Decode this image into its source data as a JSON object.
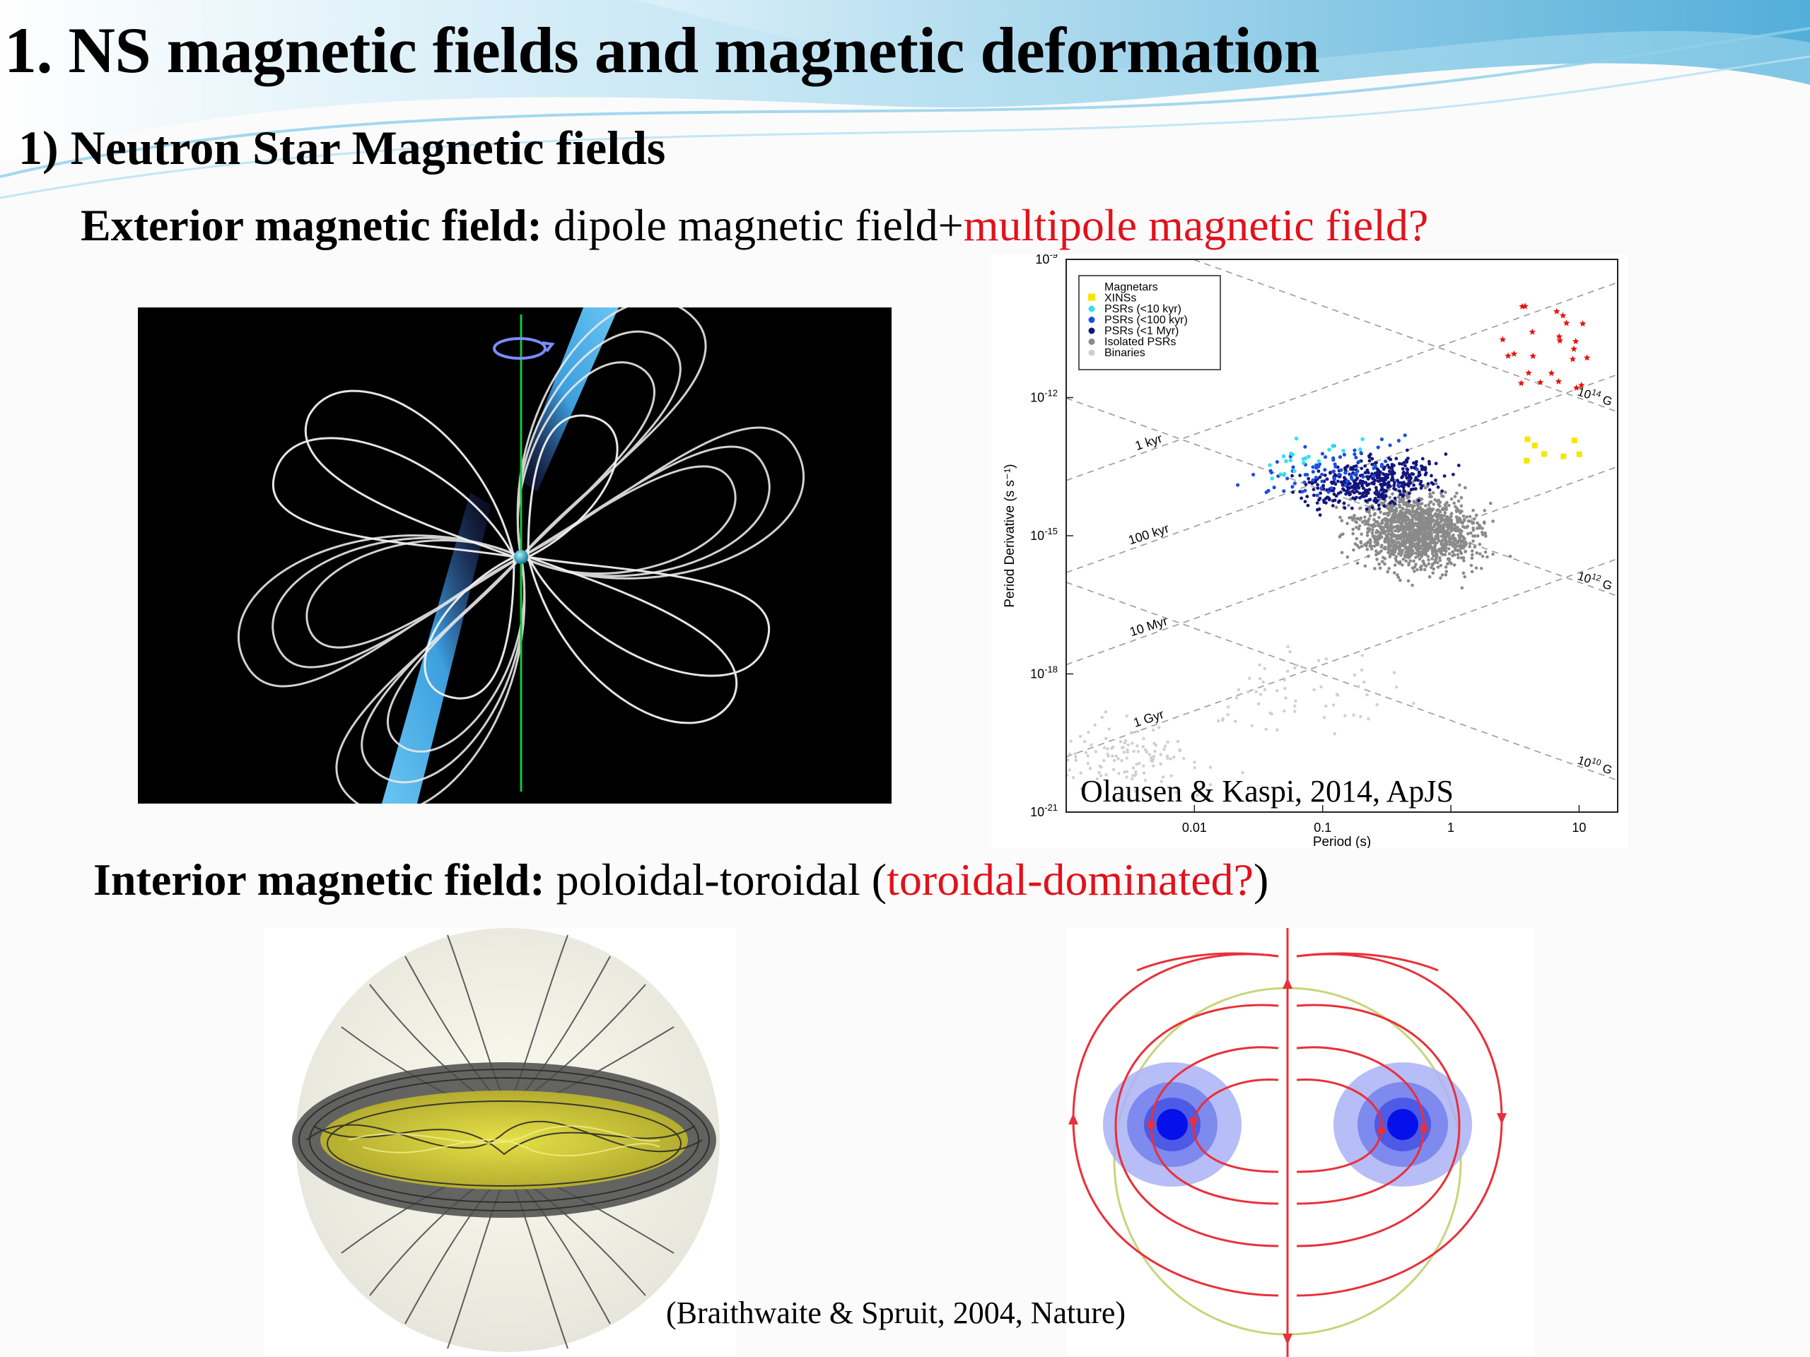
{
  "slide": {
    "title": "1. NS magnetic fields and magnetic deformation",
    "subtitle": "1) Neutron Star Magnetic fields",
    "exterior": {
      "label": "Exterior magnetic field:",
      "text": " dipole magnetic field+",
      "highlight": "multipole magnetic field?"
    },
    "interior": {
      "label": "Interior magnetic field:",
      "text": " poloidal-toroidal (",
      "highlight": "toroidal-dominated?",
      "close": ")"
    },
    "citation_ppdot": "Olausen & Kaspi, 2014, ApJS",
    "citation_bs": "(Braithwaite & Spruit, 2004, Nature)"
  },
  "chart_data": {
    "type": "scatter",
    "xlabel": "Period (s)",
    "ylabel": "Period Derivative (s s⁻¹)",
    "xscale": "log",
    "yscale": "log",
    "xlim": [
      0.001,
      20
    ],
    "ylim": [
      1e-21,
      1e-09
    ],
    "x_ticks": [
      "0.01",
      "0.1",
      "1",
      "10"
    ],
    "y_ticks": [
      {
        "base": "10",
        "exp": "-9"
      },
      {
        "base": "10",
        "exp": "-12"
      },
      {
        "base": "10",
        "exp": "-15"
      },
      {
        "base": "10",
        "exp": "-18"
      },
      {
        "base": "10",
        "exp": "-21"
      }
    ],
    "age_lines": [
      "1 kyr",
      "100 kyr",
      "10 Myr",
      "1 Gyr"
    ],
    "field_lines": [
      {
        "base": "10",
        "exp": "14",
        "unit": "G"
      },
      {
        "base": "10",
        "exp": "12",
        "unit": "G"
      },
      {
        "base": "10",
        "exp": "10",
        "unit": "G"
      }
    ],
    "legend_placement": "top-left",
    "series": [
      {
        "name": "Magnetars",
        "marker": "star",
        "color": "#e8140c"
      },
      {
        "name": "XINSs",
        "marker": "square",
        "color": "#f5e600"
      },
      {
        "name": "PSRs (<10 kyr)",
        "marker": "circle",
        "color": "#33e0f0"
      },
      {
        "name": "PSRs (<100 kyr)",
        "marker": "circle",
        "color": "#1b4fe0"
      },
      {
        "name": "PSRs (<1 Myr)",
        "marker": "circle",
        "color": "#13157e"
      },
      {
        "name": "Isolated PSRs",
        "marker": "circle",
        "color": "#8a8a8a"
      },
      {
        "name": "Binaries",
        "marker": "circle",
        "color": "#cfcfcf"
      }
    ]
  },
  "colors": {
    "accent_red": "#e1121b",
    "header_wave": "#5fb8dc"
  }
}
